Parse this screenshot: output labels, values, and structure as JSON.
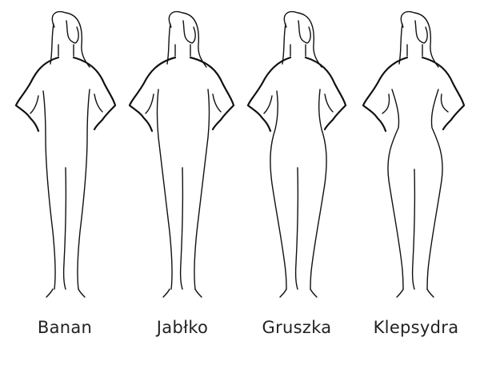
{
  "figures": [
    {
      "id": "banan",
      "label": "Banan"
    },
    {
      "id": "jablko",
      "label": "Jabłko"
    },
    {
      "id": "gruszka",
      "label": "Gruszka"
    },
    {
      "id": "klepsydra",
      "label": "Klepsydra"
    }
  ],
  "colors": {
    "background": "#ffffff",
    "ink": "#111111",
    "text": "#222222"
  }
}
